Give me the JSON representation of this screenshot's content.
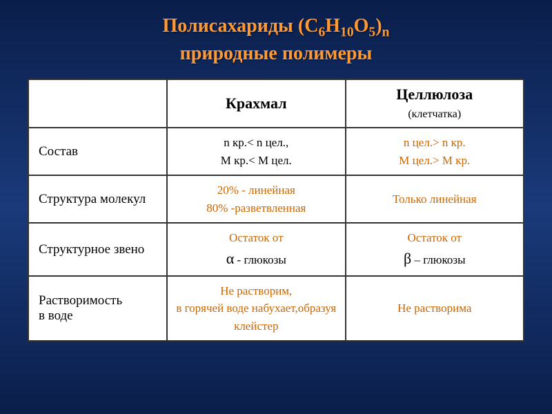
{
  "title_line1": "Полисахариды (С",
  "title_sub1": "6",
  "title_mid1": "Н",
  "title_sub2": "10",
  "title_mid2": "О",
  "title_sub3": "5",
  "title_close": ")",
  "title_subn": "n",
  "title_line2": "природные полимеры",
  "headers": {
    "col1": "Крахмал",
    "col2_main": "Целлюлоза",
    "col2_sub": "(клетчатка)"
  },
  "rows": {
    "r1": {
      "label": " Состав",
      "c1_line1": "n кр.< n цел.,",
      "c1_line2": "М кр.< М цел.",
      "c2_line1": "n цел.> n кр.",
      "c2_line2": "М цел.> М кр."
    },
    "r2": {
      "label": " Структура молекул",
      "c1_line1": "20% - линейная",
      "c1_line2": "80% -разветвленная",
      "c2": "Только линейная"
    },
    "r3": {
      "label": " Структурное звено",
      "c1_line1": "Остаток от",
      "c1_letter": "α",
      "c1_after": " -   глюкозы",
      "c2_line1": "Остаток от",
      "c2_letter": "β",
      "c2_after": " –   глюкозы"
    },
    "r4": {
      "label": " Растворимость",
      "label2": " в воде",
      "c1_line1": "Не растворим,",
      "c1_line2": "в горячей воде набухает,образуя клейстер",
      "c2": "Не растворима"
    }
  },
  "colors": {
    "title": "#ff9933",
    "orange_text": "#cc6600",
    "black_text": "#000000",
    "table_bg": "#ffffff",
    "border": "#333333"
  }
}
